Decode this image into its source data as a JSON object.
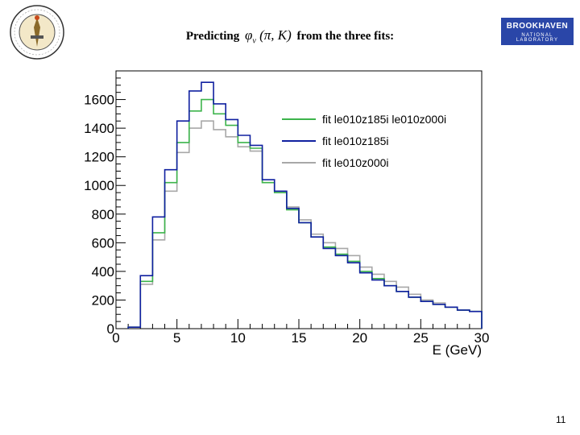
{
  "slide": {
    "title_prefix": "Predicting",
    "title_symbol": "φ",
    "title_subscript": "ν",
    "title_args": "(π, K)",
    "title_suffix": "from the three fits:",
    "page_number": "11",
    "logo_right_line1": "BROOKHAVEN",
    "logo_right_line2": "NATIONAL LABORATORY"
  },
  "chart_data": {
    "type": "step-histogram",
    "xlabel": "E (GeV)",
    "xlim": [
      0,
      30
    ],
    "ylim": [
      0,
      1800
    ],
    "xticks": [
      0,
      5,
      10,
      15,
      20,
      25,
      30
    ],
    "yticks": [
      0,
      200,
      400,
      600,
      800,
      1000,
      1200,
      1400,
      1600
    ],
    "legend_position": "top-right",
    "bin_edges": [
      1,
      2,
      3,
      4,
      5,
      6,
      7,
      8,
      9,
      10,
      11,
      12,
      13,
      14,
      15,
      16,
      17,
      18,
      19,
      20,
      21,
      22,
      23,
      24,
      25,
      26,
      27,
      28,
      29,
      30
    ],
    "series": [
      {
        "name": "fit le010z185i le010z000i",
        "color": "#3cb44b",
        "values": [
          10,
          330,
          670,
          1020,
          1300,
          1520,
          1600,
          1500,
          1420,
          1300,
          1260,
          1020,
          950,
          830,
          740,
          640,
          570,
          520,
          470,
          400,
          350,
          300,
          260,
          220,
          190,
          170,
          150,
          130,
          120
        ]
      },
      {
        "name": "fit le010z185i",
        "color": "#1020a0",
        "values": [
          10,
          370,
          780,
          1110,
          1450,
          1660,
          1720,
          1570,
          1460,
          1350,
          1280,
          1040,
          960,
          840,
          740,
          640,
          560,
          510,
          460,
          390,
          340,
          300,
          260,
          220,
          190,
          170,
          150,
          130,
          120
        ]
      },
      {
        "name": "fit le010z000i",
        "color": "#a8a8a8",
        "values": [
          10,
          310,
          620,
          960,
          1230,
          1400,
          1450,
          1390,
          1340,
          1270,
          1240,
          1020,
          960,
          850,
          760,
          660,
          600,
          560,
          510,
          430,
          380,
          330,
          290,
          240,
          200,
          180,
          150,
          130,
          120
        ]
      }
    ]
  }
}
